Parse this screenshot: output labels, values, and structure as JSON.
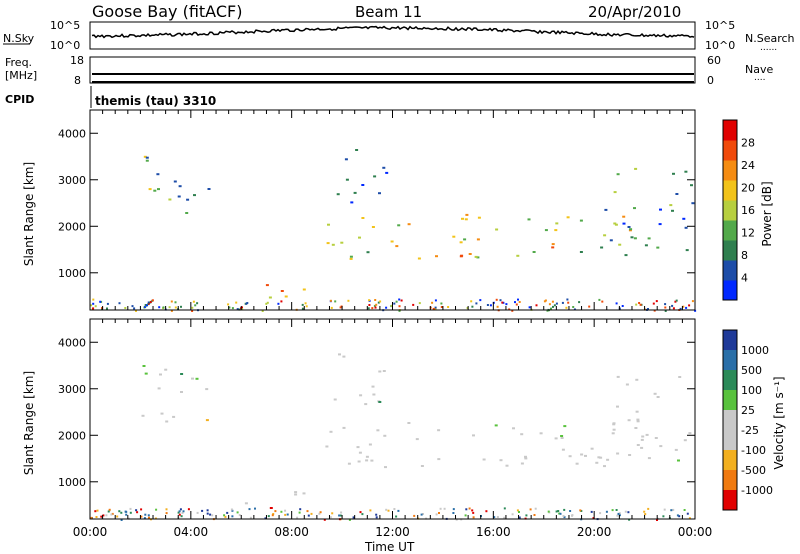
{
  "header": {
    "station": "Goose Bay (fitACF)",
    "beam": "Beam 11",
    "date": "20/Apr/2010"
  },
  "left_labels": {
    "nsky": "N.Sky",
    "freq_line1": "Freq.",
    "freq_line2": "[MHz]",
    "cpid": "CPID"
  },
  "right_labels": {
    "nsearch": "N.Search",
    "nsearch_marker": "......",
    "nave": "Nave",
    "nave_marker": "...."
  },
  "noise_panel": {
    "top": "10^5",
    "bottom": "10^0",
    "right_top": "10^5",
    "right_bottom": "10^0"
  },
  "freq_panel": {
    "left_top": "18",
    "left_bottom": "8",
    "right_top": "60",
    "right_bottom": "0"
  },
  "cpid_text": "themis (tau) 3310",
  "colors": {
    "power": [
      "#0028ff",
      "#1d4da8",
      "#2f7f4f",
      "#52a94a",
      "#b7cf3f",
      "#f2c31a",
      "#f58c12",
      "#f04a0b",
      "#e00000"
    ],
    "velocity": [
      "#1f3a99",
      "#2a6fa8",
      "#2b8a58",
      "#59c23d",
      "#c9c9c9",
      "#c9c9c9",
      "#f3b020",
      "#f07a10",
      "#e00000"
    ]
  },
  "chart_data": [
    {
      "type": "heatmap",
      "quantity": "Power",
      "ylabel": "Slant Range [km]",
      "yticks": [
        "1000",
        "2000",
        "3000",
        "4000"
      ],
      "ylim": [
        200,
        4500
      ],
      "xlim": [
        0,
        24
      ],
      "colorbar": {
        "label": "Power [dB]",
        "ticks": [
          "4",
          "8",
          "12",
          "16",
          "20",
          "24",
          "28"
        ],
        "range": [
          0,
          32
        ]
      },
      "regions": [
        {
          "t0": 2.0,
          "t1": 4.7,
          "r0": 2200,
          "r1": 3600,
          "level": 0.35
        },
        {
          "t0": 5.7,
          "t1": 8.8,
          "r0": 450,
          "r1": 900,
          "level": 0.75
        },
        {
          "t0": 9.3,
          "t1": 21.5,
          "r0": 1300,
          "r1": 2300,
          "level": 0.55
        },
        {
          "t0": 9.6,
          "t1": 11.8,
          "r0": 2500,
          "r1": 3800,
          "level": 0.25
        },
        {
          "t0": 20.3,
          "t1": 24.0,
          "r0": 1300,
          "r1": 3300,
          "level": 0.3
        }
      ]
    },
    {
      "type": "heatmap",
      "quantity": "Velocity",
      "ylabel": "Slant Range [km]",
      "yticks": [
        "1000",
        "2000",
        "3000",
        "4000"
      ],
      "ylim": [
        200,
        4500
      ],
      "xlim": [
        0,
        24
      ],
      "xticks": [
        "00:00",
        "04:00",
        "08:00",
        "12:00",
        "16:00",
        "20:00",
        "00:00"
      ],
      "xlabel": "Time UT",
      "colorbar": {
        "label": "Velocity [m s⁻¹]",
        "ticks": [
          "1000",
          "500",
          "100",
          "25",
          "-25",
          "-100",
          "-500",
          "-1000"
        ]
      },
      "regions": [
        {
          "t0": 2.0,
          "t1": 4.7,
          "r0": 2200,
          "r1": 3600,
          "level": 0.5
        },
        {
          "t0": 5.7,
          "t1": 8.8,
          "r0": 450,
          "r1": 900,
          "level": 0.8
        },
        {
          "t0": 9.3,
          "t1": 21.5,
          "r0": 1300,
          "r1": 2300,
          "level": 0.5
        },
        {
          "t0": 9.6,
          "t1": 11.8,
          "r0": 2500,
          "r1": 3800,
          "level": 0.5
        },
        {
          "t0": 20.3,
          "t1": 24.0,
          "r0": 1300,
          "r1": 3300,
          "level": 0.5
        }
      ]
    }
  ]
}
